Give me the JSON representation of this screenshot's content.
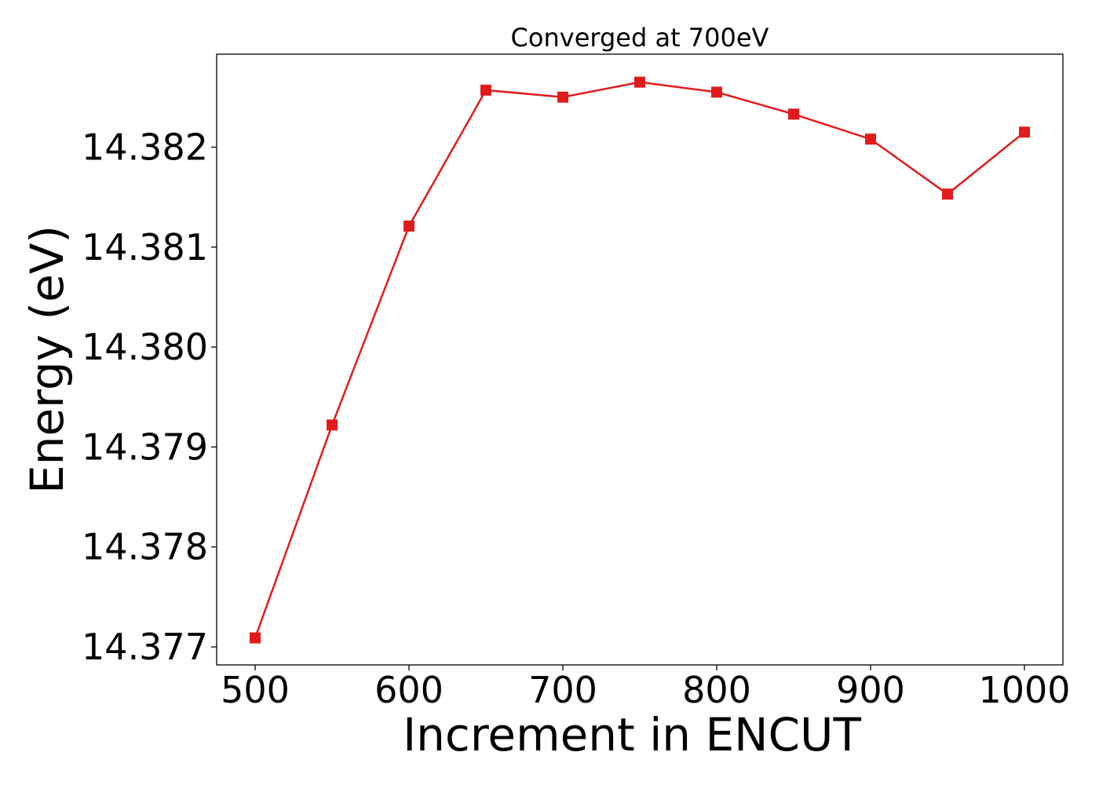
{
  "chart_data": {
    "type": "line",
    "title": "Converged at 700eV",
    "xlabel": "Increment in ENCUT",
    "ylabel": "Energy (eV)",
    "xlim": [
      475,
      1025
    ],
    "ylim": [
      14.37682,
      14.38293
    ],
    "x_ticks": [
      500,
      600,
      700,
      800,
      900,
      1000
    ],
    "y_ticks": [
      14.377,
      14.378,
      14.379,
      14.38,
      14.381,
      14.382
    ],
    "y_tick_labels": [
      "14.377",
      "14.378",
      "14.379",
      "14.380",
      "14.381",
      "14.382"
    ],
    "grid": false,
    "series": [
      {
        "color": "#e31a1c",
        "marker": "square",
        "x": [
          500,
          550,
          600,
          650,
          700,
          750,
          800,
          850,
          900,
          950,
          1000
        ],
        "y": [
          14.37709,
          14.37922,
          14.38121,
          14.38257,
          14.3825,
          14.38265,
          14.38255,
          14.38233,
          14.38208,
          14.38153,
          14.38215
        ]
      }
    ]
  }
}
